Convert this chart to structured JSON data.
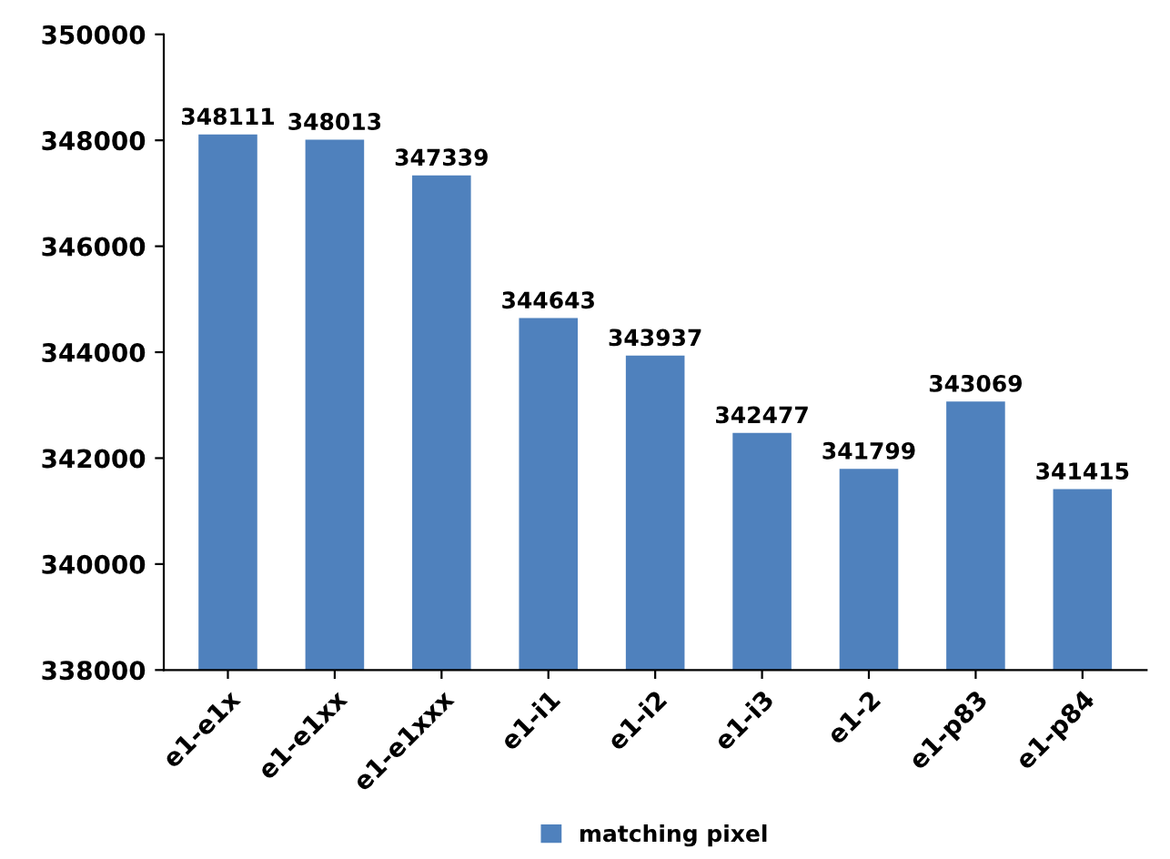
{
  "chart_data": {
    "type": "bar",
    "categories": [
      "e1-e1x",
      "e1-e1xx",
      "e1-e1xxx",
      "e1-i1",
      "e1-i2",
      "e1-i3",
      "e1-2",
      "e1-p83",
      "e1-p84"
    ],
    "series": [
      {
        "name": "matching pixel",
        "color": "#4f81bd",
        "values": [
          348111,
          348013,
          347339,
          344643,
          343937,
          342477,
          341799,
          343069,
          341415
        ]
      }
    ],
    "ylim": [
      338000,
      350000
    ],
    "yticks": [
      338000,
      340000,
      342000,
      344000,
      346000,
      348000,
      350000
    ],
    "data_labels": true,
    "legend": "bottom",
    "grid": false
  }
}
